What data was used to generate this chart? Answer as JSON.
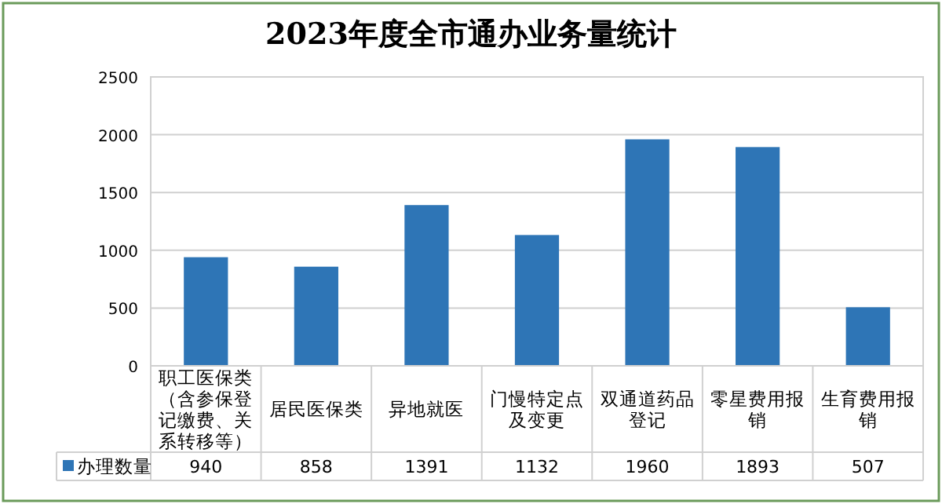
{
  "chart_data": {
    "type": "bar",
    "title": "2023年度全市通办业务量统计",
    "categories": [
      "职工医保类（含参保登记缴费、关系转移等）",
      "居民医保类",
      "异地就医",
      "门慢特定点及变更",
      "双通道药品登记",
      "零星费用报销",
      "生育费用报销"
    ],
    "series": [
      {
        "name": "办理数量",
        "color": "#2e75b6",
        "values": [
          940,
          858,
          1391,
          1132,
          1960,
          1893,
          507
        ]
      }
    ],
    "ylim": [
      0,
      2500
    ],
    "yticks": [
      0,
      500,
      1000,
      1500,
      2000,
      2500
    ],
    "grid": "y",
    "legend": "bottom",
    "data_labels": true
  }
}
